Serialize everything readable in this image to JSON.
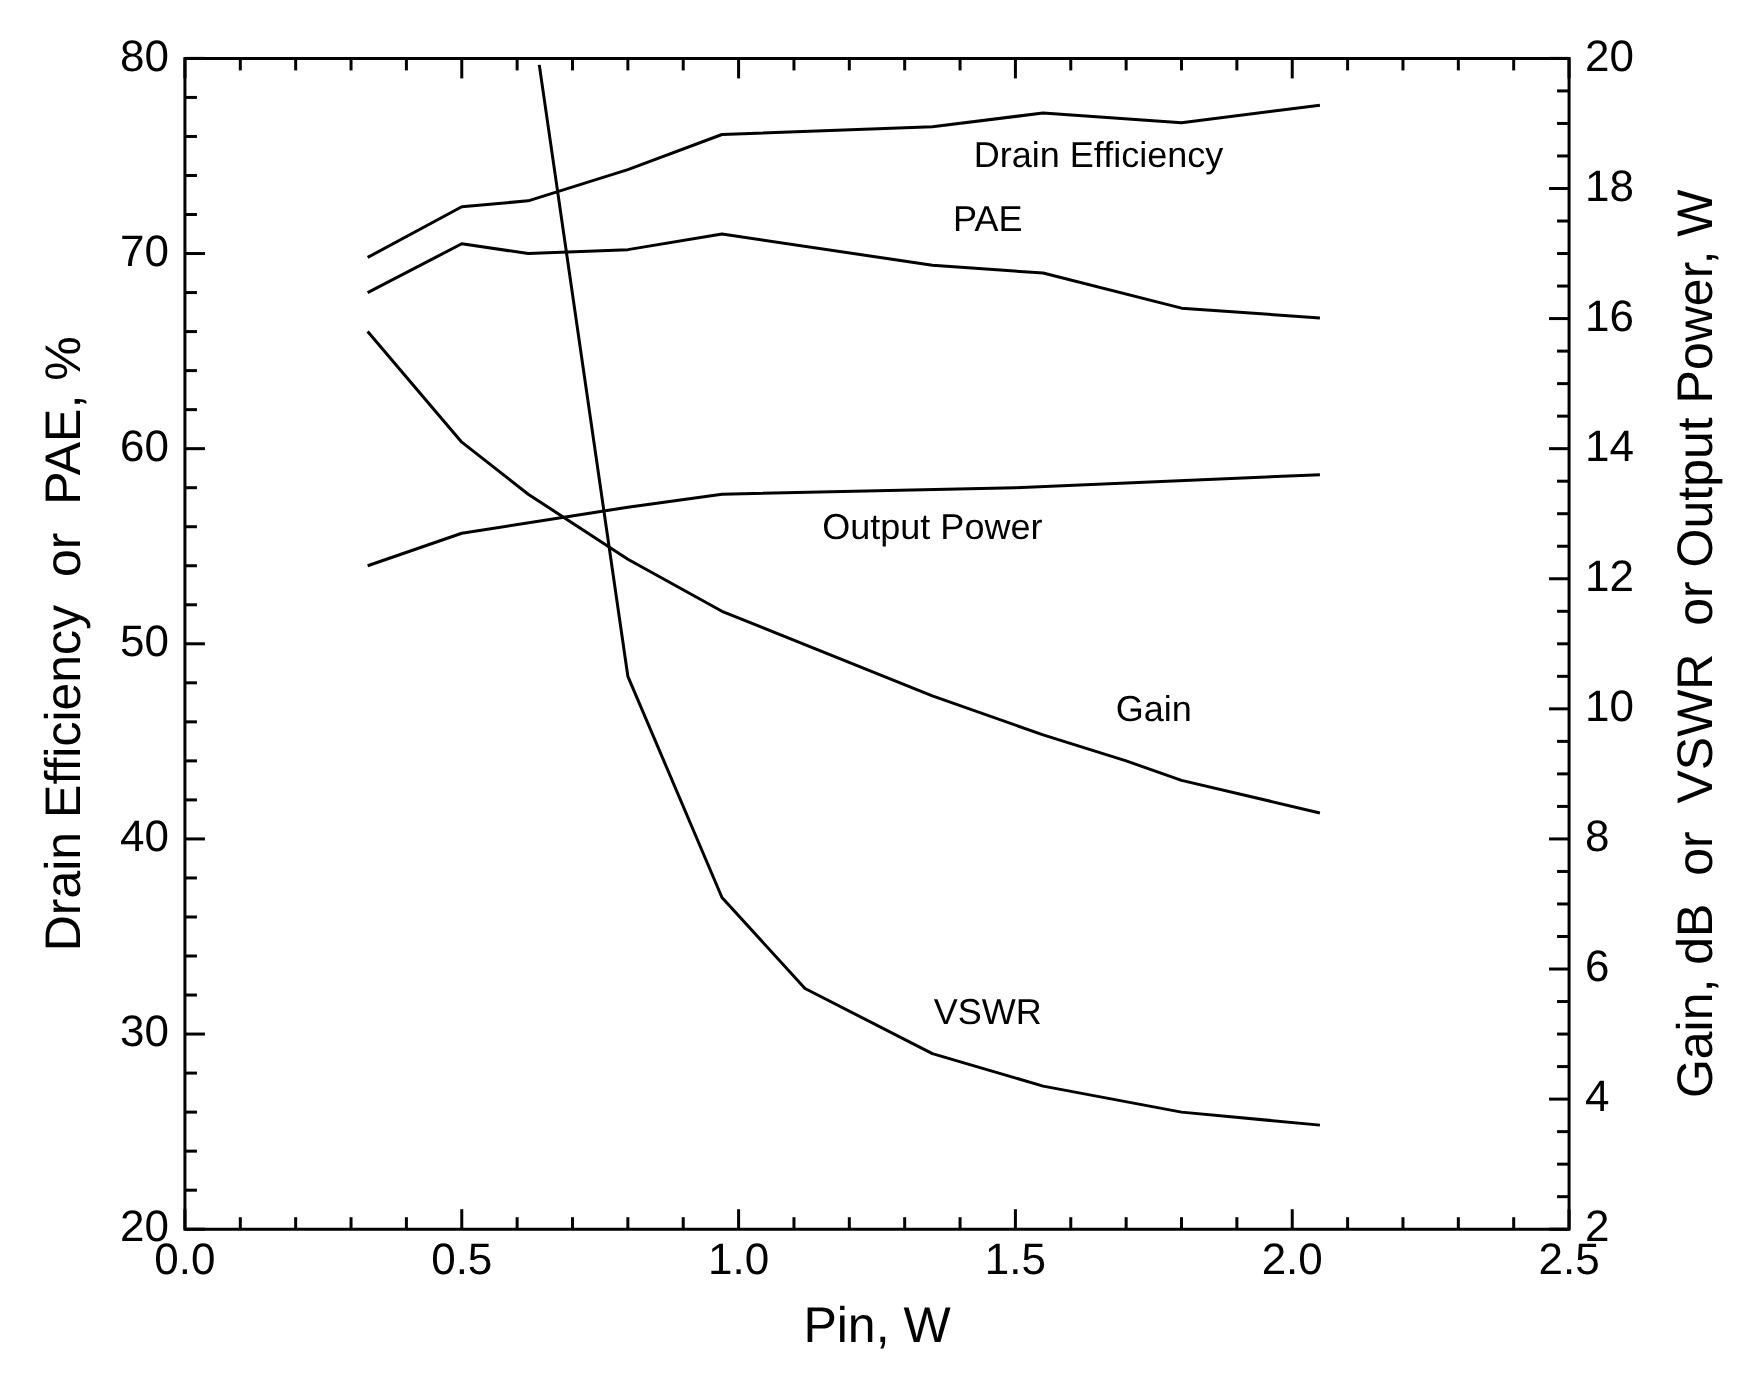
{
  "chart_data": {
    "type": "line",
    "xlabel": "Pin, W",
    "ylabel": "Drain Efficiency  or  PAE, %",
    "y2label": "Gain, dB  or  VSWR  or Output Power, W",
    "xlim": [
      0,
      2.5
    ],
    "xticks": [
      {
        "value": 0,
        "label": "0.0"
      },
      {
        "value": 0.5,
        "label": "0.5"
      },
      {
        "value": 1,
        "label": "1.0"
      },
      {
        "value": 1.5,
        "label": "1.5"
      },
      {
        "value": 2,
        "label": "2.0"
      },
      {
        "value": 2.5,
        "label": "2.5"
      }
    ],
    "ylim": [
      20,
      80
    ],
    "yticks": [
      20,
      30,
      40,
      50,
      60,
      70,
      80
    ],
    "y2lim": [
      2,
      20
    ],
    "y2ticks": [
      2,
      4,
      6,
      8,
      10,
      12,
      14,
      16,
      18,
      20
    ],
    "legend": false,
    "grid": false,
    "marker": "none",
    "line_style": "solid",
    "series": [
      {
        "name": "Drain Efficiency",
        "color": "#000000",
        "x": [
          0.33,
          0.5,
          0.62,
          0.8,
          0.97,
          1.35,
          1.55,
          1.8,
          2.05
        ],
        "values": [
          69.8,
          72.4,
          72.7,
          74.3,
          76.1,
          76.5,
          77.2,
          76.7,
          77.6
        ]
      },
      {
        "name": "PAE",
        "color": "#000000",
        "x": [
          0.33,
          0.5,
          0.62,
          0.8,
          0.97,
          1.35,
          1.55,
          1.8,
          2.05
        ],
        "values": [
          68.0,
          70.5,
          70.0,
          70.2,
          71.0,
          69.4,
          69.0,
          67.2,
          66.7
        ]
      },
      {
        "name": "Output Power",
        "color": "#000000",
        "axis": "y2",
        "x": [
          0.33,
          0.5,
          0.8,
          0.97,
          1.5,
          2.05
        ],
        "values": [
          12.2,
          12.7,
          13.1,
          13.3,
          13.4,
          13.6
        ]
      },
      {
        "name": "Gain",
        "color": "#000000",
        "axis": "y2",
        "x": [
          0.33,
          0.5,
          0.62,
          0.8,
          0.97,
          1.35,
          1.55,
          1.7,
          1.8,
          2.05
        ],
        "values": [
          15.8,
          14.1,
          13.3,
          12.3,
          11.5,
          10.2,
          9.6,
          9.2,
          8.9,
          8.4
        ]
      },
      {
        "name": "VSWR",
        "color": "#000000",
        "axis": "y2",
        "x": [
          0.64,
          0.8,
          0.97,
          1.12,
          1.35,
          1.55,
          1.8,
          2.05
        ],
        "values": [
          19.9,
          10.5,
          7.1,
          5.7,
          4.7,
          4.2,
          3.8,
          3.6
        ]
      }
    ]
  }
}
